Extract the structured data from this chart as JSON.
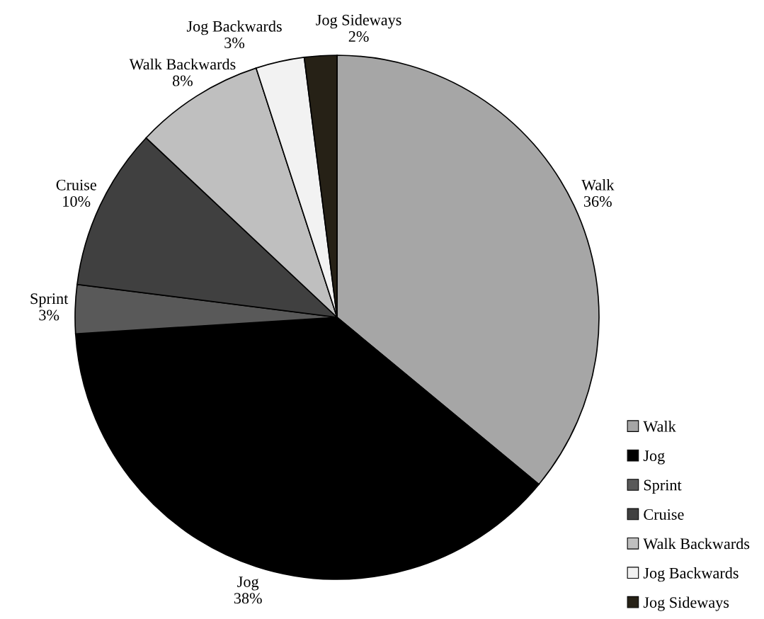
{
  "chart_data": {
    "type": "pie",
    "categories": [
      "Walk",
      "Jog",
      "Sprint",
      "Cruise",
      "Walk Backwards",
      "Jog Backwards",
      "Jog Sideways"
    ],
    "values": [
      36,
      38,
      3,
      10,
      8,
      3,
      2
    ],
    "value_labels": [
      "36%",
      "38%",
      "3%",
      "10%",
      "8%",
      "3%",
      "2%"
    ],
    "colors": [
      "#a6a6a6",
      "#000000",
      "#595959",
      "#404040",
      "#bfbfbf",
      "#f2f2f2",
      "#262116"
    ],
    "legend": "bottom right"
  }
}
